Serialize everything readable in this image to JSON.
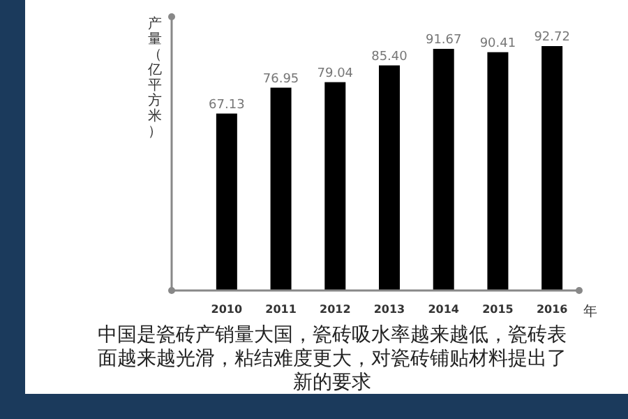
{
  "chart_data": {
    "type": "bar",
    "ylabel": "产量（亿平方米）",
    "xlabel": "年",
    "categories": [
      "2010",
      "2011",
      "2012",
      "2013",
      "2014",
      "2015",
      "2016"
    ],
    "values": [
      67.13,
      76.95,
      79.04,
      85.4,
      91.67,
      90.41,
      92.72
    ],
    "value_labels": [
      "67.13",
      "76.95",
      "79.04",
      "85.40",
      "91.67",
      "90.41",
      "92.72"
    ],
    "color": "#000000",
    "tick_labels": "x",
    "annotations": [
      "中国是瓷砖产销量大国，瓷砖吸水率越来越低，瓷砖表面越来越光滑，粘结难度更大，对瓷砖铺贴材料提出了新的要求"
    ]
  }
}
